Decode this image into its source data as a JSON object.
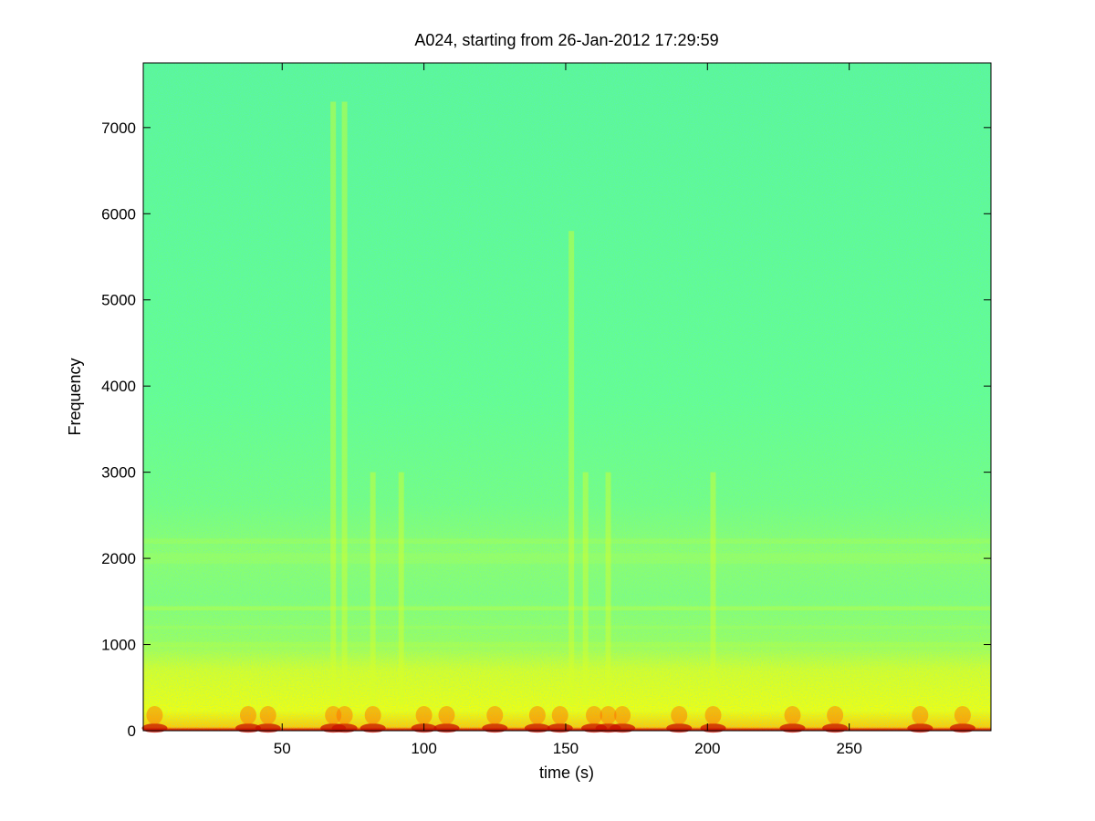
{
  "chart_data": {
    "type": "heatmap",
    "title": "A024, starting from 26-Jan-2012 17:29:59",
    "xlabel": "time (s)",
    "ylabel": "Frequency",
    "xlim": [
      1,
      300
    ],
    "ylim": [
      0,
      7750
    ],
    "x_ticks": [
      50,
      100,
      150,
      200,
      250
    ],
    "y_ticks": [
      0,
      1000,
      2000,
      3000,
      4000,
      5000,
      6000,
      7000
    ],
    "grid": false,
    "legend": "none",
    "colormap": "jet",
    "energy_profile": {
      "frequency": [
        0,
        60,
        200,
        400,
        650,
        800,
        1000,
        1200,
        1400,
        1600,
        2000,
        2200,
        2600,
        3000,
        4000,
        7750
      ],
      "relative_level": [
        1.0,
        0.88,
        0.78,
        0.74,
        0.68,
        0.6,
        0.58,
        0.55,
        0.56,
        0.52,
        0.55,
        0.53,
        0.49,
        0.47,
        0.44,
        0.42
      ]
    },
    "broadband_events_time": [
      68,
      72,
      82,
      92,
      152,
      157,
      165,
      202
    ],
    "low_frequency_bursts_time": [
      5,
      38,
      45,
      68,
      72,
      82,
      100,
      108,
      125,
      140,
      148,
      160,
      165,
      170,
      190,
      202,
      230,
      245,
      275,
      290
    ]
  }
}
